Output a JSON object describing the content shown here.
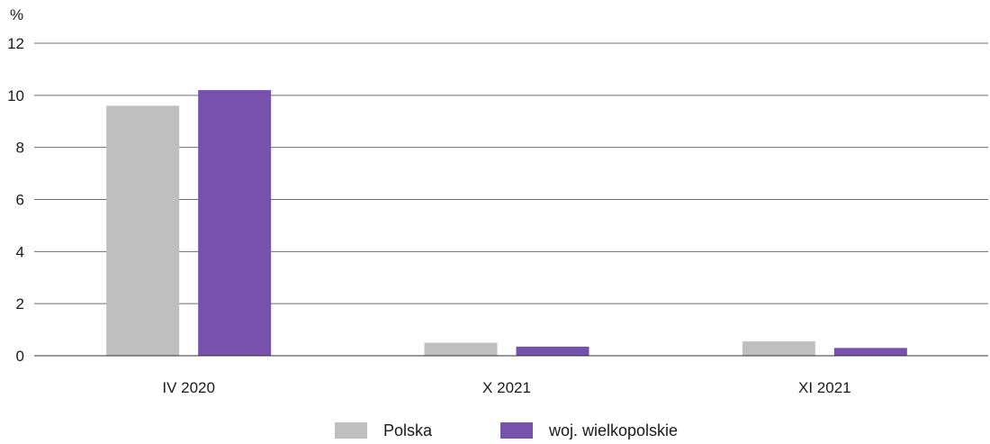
{
  "chart_data": {
    "type": "bar",
    "categories": [
      "IV 2020",
      "X 2021",
      "XI 2021"
    ],
    "series": [
      {
        "name": "Polska",
        "color": "#bfbfbf",
        "values": [
          9.6,
          0.5,
          0.55
        ]
      },
      {
        "name": "woj. wielkopolskie",
        "color": "#7652ad",
        "values": [
          10.2,
          0.35,
          0.3
        ]
      }
    ],
    "ylabel": "%",
    "ylim": [
      0,
      12
    ],
    "yticks": [
      0,
      2,
      4,
      6,
      8,
      10,
      12
    ],
    "grid": true,
    "legend_position": "bottom-center"
  }
}
